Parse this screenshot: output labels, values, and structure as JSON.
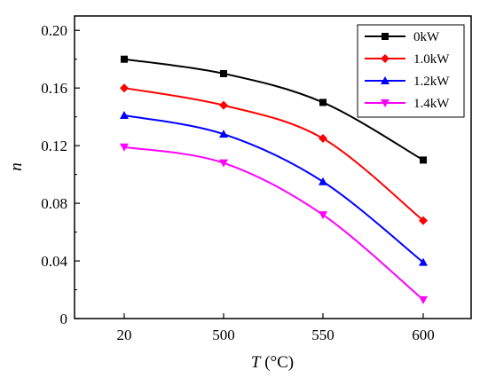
{
  "chart_data": {
    "type": "line",
    "categories": [
      "20",
      "500",
      "550",
      "600"
    ],
    "xlabel_var": "T",
    "xlabel_unit": " (°C)",
    "ylabel": "n",
    "ylim": [
      0,
      0.21
    ],
    "yticks": [
      0,
      0.04,
      0.08,
      0.12,
      0.16,
      0.2
    ],
    "ytick_labels": [
      "0",
      "0.04",
      "0.08",
      "0.12",
      "0.16",
      "0.20"
    ],
    "grid": false,
    "legend_position": "top-right",
    "series": [
      {
        "name": "0kW",
        "color": "#000000",
        "marker": "square",
        "values": [
          0.18,
          0.17,
          0.15,
          0.11
        ]
      },
      {
        "name": "1.0kW",
        "color": "#ff0000",
        "marker": "diamond",
        "values": [
          0.16,
          0.148,
          0.125,
          0.068
        ]
      },
      {
        "name": "1.2kW",
        "color": "#0000ff",
        "marker": "triangle-up",
        "values": [
          0.141,
          0.128,
          0.095,
          0.039
        ]
      },
      {
        "name": "1.4kW",
        "color": "#ff00ff",
        "marker": "triangle-down",
        "values": [
          0.119,
          0.108,
          0.072,
          0.013
        ]
      }
    ]
  }
}
